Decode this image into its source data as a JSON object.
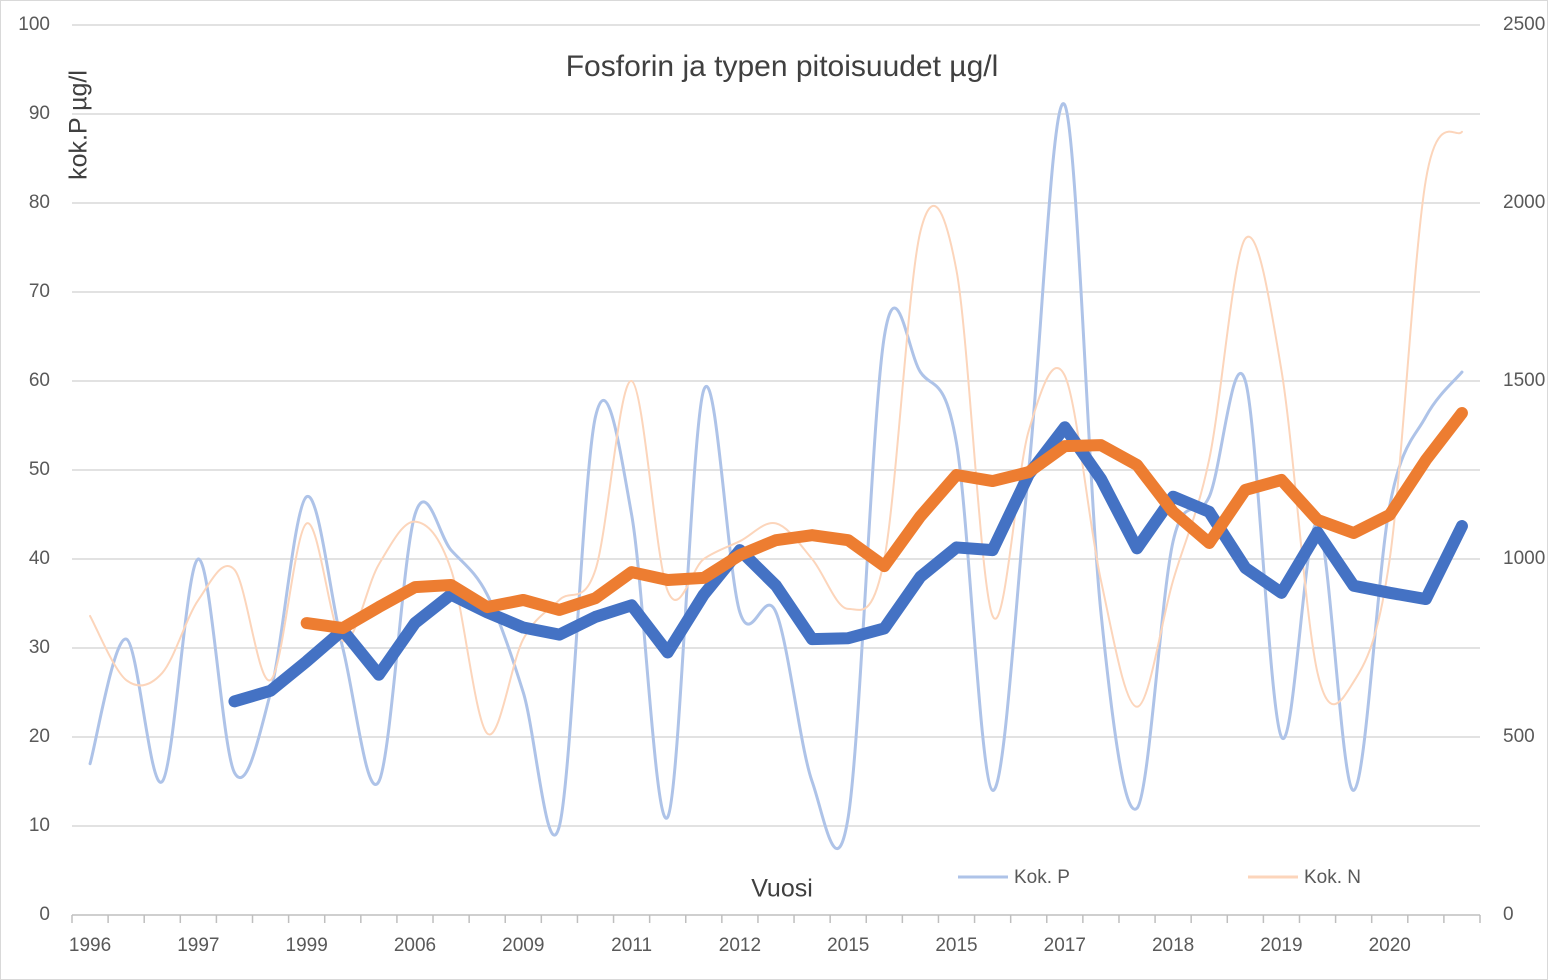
{
  "chart_data": {
    "type": "line",
    "title": "Fosforin ja typen pitoisuudet µg/l",
    "y_label": "kok.P µg/l",
    "x_label": "Vuosi",
    "categories": [
      "1996",
      null,
      null,
      "1997",
      null,
      null,
      "1999",
      null,
      null,
      "2006",
      null,
      null,
      "2009",
      null,
      null,
      "2011",
      null,
      null,
      "2012",
      null,
      null,
      "2015",
      null,
      null,
      "2015",
      null,
      null,
      "2017",
      null,
      null,
      "2018",
      null,
      null,
      "2019",
      null,
      null,
      "2020",
      null,
      null
    ],
    "ylim": [
      0,
      100
    ],
    "yticks": [
      0,
      10,
      20,
      30,
      40,
      50,
      60,
      70,
      80,
      90,
      100
    ],
    "y2lim": [
      0,
      2500
    ],
    "y2ticks": [
      0,
      500,
      1000,
      1500,
      2000,
      2500
    ],
    "grid": true,
    "legend": "bottom-right",
    "series": [
      {
        "name": "Kok. P",
        "color": "#aec3e8",
        "smooth": true,
        "width": 3,
        "values": [
          17,
          31,
          15,
          40,
          16,
          25,
          47,
          30,
          15,
          45,
          41,
          36,
          25,
          10,
          56,
          45,
          11,
          59,
          34,
          34,
          15,
          11,
          65,
          61,
          53,
          14,
          50,
          91,
          34,
          12,
          42,
          47,
          60,
          20,
          44,
          14,
          46,
          56,
          61
        ]
      },
      {
        "name": "Kok. N",
        "color": "#fcd5bb",
        "smooth": true,
        "width": 2,
        "axis": "y2",
        "values": [
          840,
          660,
          680,
          885,
          970,
          660,
          1100,
          770,
          985,
          1105,
          970,
          510,
          775,
          885,
          970,
          1500,
          910,
          1000,
          1050,
          1100,
          1000,
          860,
          1000,
          1920,
          1810,
          840,
          1360,
          1515,
          940,
          585,
          940,
          1280,
          1900,
          1530,
          680,
          655,
          1000,
          2065,
          2200
        ]
      },
      {
        "color": "#4472c4",
        "smooth": false,
        "width": 12,
        "values": [
          null,
          null,
          null,
          null,
          24,
          25.2,
          28.5,
          32,
          27,
          32.8,
          36,
          34,
          32.3,
          31.5,
          33.5,
          34.8,
          29.5,
          36,
          41,
          37,
          31,
          31.1,
          32.2,
          38,
          41.3,
          41,
          49.5,
          54.8,
          49,
          41.2,
          47,
          45.3,
          39,
          36.2,
          43,
          37,
          36.2,
          35.5,
          43.7
        ]
      },
      {
        "color": "#ed7d31",
        "smooth": false,
        "width": 12,
        "axis": "y2",
        "values": [
          null,
          null,
          null,
          null,
          null,
          null,
          820,
          806,
          865,
          921,
          927,
          865,
          885,
          857,
          890,
          963,
          941,
          947,
          1011,
          1053,
          1067,
          1053,
          980,
          1120,
          1236,
          1219,
          1244,
          1317,
          1320,
          1264,
          1132,
          1045,
          1194,
          1222,
          1110,
          1073,
          1124,
          1278,
          1410
        ]
      }
    ]
  }
}
